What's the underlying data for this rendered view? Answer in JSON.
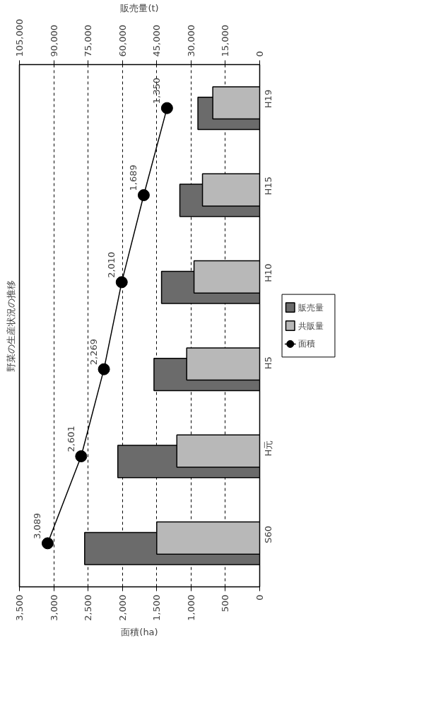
{
  "chart_data": {
    "type": "bar",
    "orientation": "horizontal",
    "title": "野菜の生産状況の推移",
    "xlabel": "面積(ha)",
    "x2label": "販売量(t)",
    "categories": [
      "H19",
      "H15",
      "H10",
      "H5",
      "H元",
      "S60"
    ],
    "xlim": [
      3500,
      0
    ],
    "xticks": [
      0,
      500,
      {
        "value": 1000,
        "label": "1,000"
      },
      {
        "value": 1500,
        "label": "1,500"
      },
      {
        "value": 2000,
        "label": "2,000"
      },
      {
        "value": 2500,
        "label": "2,500"
      },
      {
        "value": 3000,
        "label": "3,000"
      },
      {
        "value": 3500,
        "label": "3,500"
      }
    ],
    "x2lim": [
      105000,
      0
    ],
    "x2ticks": [
      0,
      {
        "value": 15000,
        "label": "15,000"
      },
      {
        "value": 30000,
        "label": "30,000"
      },
      {
        "value": 45000,
        "label": "45,000"
      },
      {
        "value": 60000,
        "label": "60,000"
      },
      {
        "value": 75000,
        "label": "75,000"
      },
      {
        "value": 90000,
        "label": "90,000"
      },
      {
        "value": 105000,
        "label": "105,000"
      }
    ],
    "grid": "x",
    "legend": "right",
    "series": [
      {
        "name": "販売量",
        "color": "#6b6b6b",
        "axis": "x2",
        "values": [
          27000,
          34900,
          42900,
          46200,
          62000,
          76500
        ]
      },
      {
        "name": "共販量",
        "color": "#b8b8b8",
        "axis": "x2",
        "values": [
          20500,
          25000,
          28700,
          31900,
          36200,
          45000
        ]
      },
      {
        "name": "面積",
        "type": "line",
        "color": "#000000",
        "marker": "circle",
        "values": [
          1350,
          1689,
          2010,
          2269,
          2601,
          3089
        ],
        "value_labels": [
          "1,350",
          "1,689",
          "2,010",
          "2,269",
          "2,601",
          "3,089"
        ]
      }
    ]
  }
}
